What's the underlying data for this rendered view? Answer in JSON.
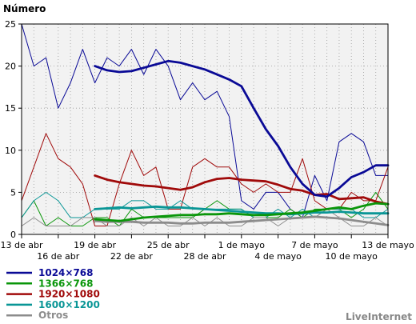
{
  "chart_data": {
    "type": "line",
    "ylabel": "Número",
    "credit": "LiveInternet",
    "ylim": [
      0,
      25
    ],
    "yticks": [
      "0",
      "5",
      "10",
      "15",
      "20",
      "25"
    ],
    "grid": true,
    "legend_position": "bottom-left",
    "x_range": [
      "2012-04-13",
      "2012-05-13"
    ],
    "xticks_upper": [
      {
        "label": "13 de abr",
        "date": "2012-04-13"
      },
      {
        "label": "19 de abr",
        "date": "2012-04-19"
      },
      {
        "label": "25 de abr",
        "date": "2012-04-25"
      },
      {
        "label": "1 de mayo",
        "date": "2012-05-01"
      },
      {
        "label": "7 de mayo",
        "date": "2012-05-07"
      },
      {
        "label": "13 de mayo",
        "date": "2012-05-13"
      }
    ],
    "xticks_lower": [
      {
        "label": "16 de abr",
        "date": "2012-04-16"
      },
      {
        "label": "22 de abr",
        "date": "2012-04-22"
      },
      {
        "label": "28 de abr",
        "date": "2012-04-28"
      },
      {
        "label": "4 de mayo",
        "date": "2012-05-04"
      },
      {
        "label": "10 de mayo",
        "date": "2012-05-10"
      }
    ],
    "daily_dates": [
      "2012-04-13",
      "2012-04-14",
      "2012-04-15",
      "2012-04-16",
      "2012-04-17",
      "2012-04-18",
      "2012-04-19",
      "2012-04-20",
      "2012-04-21",
      "2012-04-22",
      "2012-04-23",
      "2012-04-24",
      "2012-04-25",
      "2012-04-26",
      "2012-04-27",
      "2012-04-28",
      "2012-04-29",
      "2012-04-30",
      "2012-05-01",
      "2012-05-02",
      "2012-05-03",
      "2012-05-04",
      "2012-05-05",
      "2012-05-06",
      "2012-05-07",
      "2012-05-08",
      "2012-05-09",
      "2012-05-10",
      "2012-05-11",
      "2012-05-12",
      "2012-05-13"
    ],
    "avg_dates": [
      "2012-04-19",
      "2012-04-20",
      "2012-04-21",
      "2012-04-22",
      "2012-04-23",
      "2012-04-24",
      "2012-04-25",
      "2012-04-26",
      "2012-04-27",
      "2012-04-28",
      "2012-04-29",
      "2012-04-30",
      "2012-05-01",
      "2012-05-02",
      "2012-05-03",
      "2012-05-04",
      "2012-05-05",
      "2012-05-06",
      "2012-05-07",
      "2012-05-08",
      "2012-05-09",
      "2012-05-10",
      "2012-05-11",
      "2012-05-12",
      "2012-05-13"
    ],
    "series": [
      {
        "name": "1024×768",
        "color": "#0a0a96",
        "daily": [
          25,
          20,
          21,
          15,
          18,
          22,
          18,
          21,
          20,
          22,
          19,
          22,
          20,
          16,
          18,
          16,
          17,
          14,
          4,
          3,
          5,
          5,
          3,
          2,
          7,
          4,
          11,
          12,
          11,
          7,
          7
        ],
        "average": [
          20,
          19.5,
          19.3,
          19.4,
          19.8,
          20.2,
          20.6,
          20.4,
          20.0,
          19.6,
          19.0,
          18.4,
          17.6,
          15.0,
          12.5,
          10.5,
          8.0,
          6.0,
          4.7,
          4.5,
          5.5,
          6.8,
          7.4,
          8.2,
          8.2
        ]
      },
      {
        "name": "1366×768",
        "color": "#0a960a",
        "daily": [
          2,
          4,
          1,
          2,
          1,
          1,
          2,
          2,
          1,
          3,
          2,
          2,
          2,
          2,
          2,
          3,
          4,
          3,
          3,
          2,
          2,
          2,
          3,
          2,
          3,
          3,
          3,
          2,
          3,
          5,
          3
        ],
        "average": [
          1.8,
          1.7,
          1.6,
          1.8,
          2.0,
          2.1,
          2.2,
          2.3,
          2.3,
          2.4,
          2.4,
          2.5,
          2.4,
          2.3,
          2.3,
          2.4,
          2.5,
          2.6,
          2.8,
          3.0,
          3.2,
          3.0,
          3.4,
          3.7,
          3.6
        ]
      },
      {
        "name": "1920×1080",
        "color": "#a00a0a",
        "daily": [
          4,
          8,
          12,
          9,
          8,
          6,
          1,
          1,
          6,
          10,
          7,
          8,
          3,
          3,
          8,
          9,
          8,
          8,
          6,
          5,
          6,
          5,
          5,
          9,
          4,
          3,
          3,
          5,
          4,
          4,
          8
        ],
        "average": [
          7.0,
          6.5,
          6.2,
          6.0,
          5.8,
          5.7,
          5.5,
          5.3,
          5.6,
          6.2,
          6.6,
          6.7,
          6.5,
          6.4,
          6.3,
          5.9,
          5.4,
          5.2,
          4.7,
          4.8,
          4.2,
          4.3,
          4.4,
          3.9,
          3.6
        ]
      },
      {
        "name": "1600×1200",
        "color": "#0a9696",
        "daily": [
          2,
          4,
          5,
          4,
          2,
          2,
          3,
          3,
          3,
          4,
          4,
          3,
          3,
          4,
          3,
          3,
          3,
          3,
          3,
          2,
          2,
          3,
          2,
          3,
          2,
          3,
          3,
          3,
          2,
          2,
          3
        ],
        "average": [
          3.0,
          3.1,
          3.2,
          3.1,
          3.2,
          3.3,
          3.2,
          3.2,
          3.1,
          3.0,
          2.9,
          2.8,
          2.7,
          2.6,
          2.5,
          2.5,
          2.4,
          2.5,
          2.6,
          2.6,
          2.7,
          2.6,
          2.5,
          2.5,
          2.5
        ]
      },
      {
        "name": "Otros",
        "color": "#8c8c8c",
        "daily": [
          1,
          2,
          1,
          1,
          1,
          2,
          2,
          1,
          1,
          2,
          1,
          2,
          1,
          1,
          2,
          1,
          2,
          1,
          1,
          2,
          2,
          1,
          2,
          2,
          2,
          3,
          2,
          1,
          1,
          2,
          1
        ],
        "average": [
          1.6,
          1.5,
          1.5,
          1.5,
          1.4,
          1.4,
          1.4,
          1.3,
          1.3,
          1.4,
          1.4,
          1.4,
          1.5,
          1.6,
          1.7,
          1.8,
          1.9,
          2.0,
          2.1,
          2.0,
          1.9,
          1.7,
          1.5,
          1.3,
          1.1
        ]
      }
    ]
  }
}
